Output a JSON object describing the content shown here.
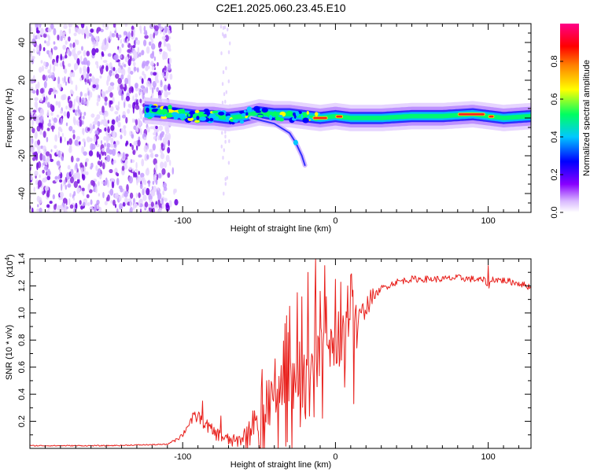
{
  "figure_title": "C2E1.2025.060.23.45.E10",
  "chart_data": [
    {
      "type": "heatmap",
      "title": "C2E1.2025.060.23.45.E10",
      "xlabel": "Height of straight line (km)",
      "ylabel": "Frequency (Hz)",
      "xlim": [
        -200,
        128
      ],
      "ylim": [
        -50,
        50
      ],
      "xticks": [
        -100,
        0,
        100
      ],
      "xtick_labels": [
        "-100",
        "0",
        "100"
      ],
      "yticks": [
        -40,
        -20,
        0,
        20,
        40
      ],
      "ytick_labels": [
        "-40",
        "-20",
        "0",
        "20",
        "40"
      ],
      "colorbar": {
        "label": "Normalized spectral amplitude",
        "range": [
          0,
          1
        ],
        "ticks": [
          0.0,
          0.2,
          0.4,
          0.6,
          0.8
        ],
        "tick_labels": [
          "0.0",
          "0.2",
          "0.4",
          "0.6",
          "0.8"
        ],
        "colors": [
          "#ffffff",
          "#d9b8ff",
          "#8800ff",
          "#0000ff",
          "#00c8ff",
          "#00ff60",
          "#ffff00",
          "#ff8000",
          "#ff0000",
          "#ff0088"
        ]
      },
      "features": {
        "noise_region": [
          -200,
          -108
        ],
        "signal_start": -125,
        "signal_ridge": [
          [
            -125,
            4
          ],
          [
            -110,
            3
          ],
          [
            -100,
            2
          ],
          [
            -90,
            1
          ],
          [
            -80,
            1
          ],
          [
            -70,
            0
          ],
          [
            -60,
            1
          ],
          [
            -50,
            3
          ],
          [
            -40,
            2
          ],
          [
            -30,
            2
          ],
          [
            -20,
            1
          ],
          [
            -10,
            0
          ],
          [
            0,
            1
          ],
          [
            10,
            0
          ],
          [
            30,
            0
          ],
          [
            50,
            1
          ],
          [
            70,
            1
          ],
          [
            90,
            2
          ],
          [
            110,
            0
          ],
          [
            128,
            1
          ]
        ],
        "branch": [
          [
            -55,
            0
          ],
          [
            -40,
            -3
          ],
          [
            -30,
            -8
          ],
          [
            -26,
            -13
          ],
          [
            -22,
            -20
          ],
          [
            -20,
            -25
          ]
        ],
        "strong_ridge_spans": [
          [
            -15,
            -5
          ],
          [
            0,
            5
          ],
          [
            80,
            98
          ],
          [
            100,
            104
          ]
        ]
      }
    },
    {
      "type": "line",
      "xlabel": "Height of straight line (km)",
      "ylabel": "SNR (10 * v/v)",
      "multiplier_label": "(x10",
      "multiplier_exp": "4",
      "multiplier_close": ")",
      "xlim": [
        -200,
        128
      ],
      "ylim": [
        0,
        1.4
      ],
      "xticks": [
        -100,
        0,
        100
      ],
      "xtick_labels": [
        "-100",
        "0",
        "100"
      ],
      "yticks": [
        0.2,
        0.4,
        0.6,
        0.8,
        1.0,
        1.2,
        1.4
      ],
      "ytick_labels": [
        "0.2",
        "0.4",
        "0.6",
        "0.8",
        "1.0",
        "1.2",
        "1.4"
      ],
      "series": [
        {
          "name": "SNR",
          "color": "#e8201c",
          "anchors": [
            [
              -200,
              0.02
            ],
            [
              -150,
              0.02
            ],
            [
              -110,
              0.03
            ],
            [
              -100,
              0.1
            ],
            [
              -95,
              0.2
            ],
            [
              -90,
              0.24
            ],
            [
              -85,
              0.18
            ],
            [
              -80,
              0.12
            ],
            [
              -70,
              0.06
            ],
            [
              -65,
              0.05
            ],
            [
              -60,
              0.08
            ],
            [
              -55,
              0.12
            ],
            [
              -50,
              0.2
            ],
            [
              -45,
              0.3
            ],
            [
              -40,
              0.36
            ],
            [
              -35,
              0.42
            ],
            [
              -30,
              0.48
            ],
            [
              -25,
              0.55
            ],
            [
              -20,
              0.6
            ],
            [
              -15,
              0.65
            ],
            [
              -10,
              0.68
            ],
            [
              -5,
              0.7
            ],
            [
              0,
              0.75
            ],
            [
              5,
              0.8
            ],
            [
              10,
              0.85
            ],
            [
              15,
              0.95
            ],
            [
              20,
              1.05
            ],
            [
              25,
              1.12
            ],
            [
              30,
              1.18
            ],
            [
              40,
              1.23
            ],
            [
              50,
              1.25
            ],
            [
              60,
              1.25
            ],
            [
              70,
              1.25
            ],
            [
              80,
              1.26
            ],
            [
              90,
              1.25
            ],
            [
              98,
              1.24
            ],
            [
              100,
              1.2
            ],
            [
              103,
              1.25
            ],
            [
              110,
              1.24
            ],
            [
              120,
              1.22
            ],
            [
              128,
              1.19
            ]
          ],
          "spikes": [
            [
              -87,
              0.35
            ],
            [
              -75,
              0.24
            ],
            [
              -45,
              0.5
            ],
            [
              -32,
              0.98
            ],
            [
              -30,
              1.05
            ],
            [
              -25,
              1.15
            ],
            [
              -22,
              1.12
            ],
            [
              -18,
              1.3
            ],
            [
              -13,
              1.4
            ],
            [
              -7,
              1.35
            ],
            [
              -3,
              0.88
            ],
            [
              5,
              0.98
            ],
            [
              8,
              1.2
            ],
            [
              10,
              1.28
            ],
            [
              12,
              0.33
            ],
            [
              100,
              1.35
            ]
          ]
        }
      ]
    }
  ]
}
